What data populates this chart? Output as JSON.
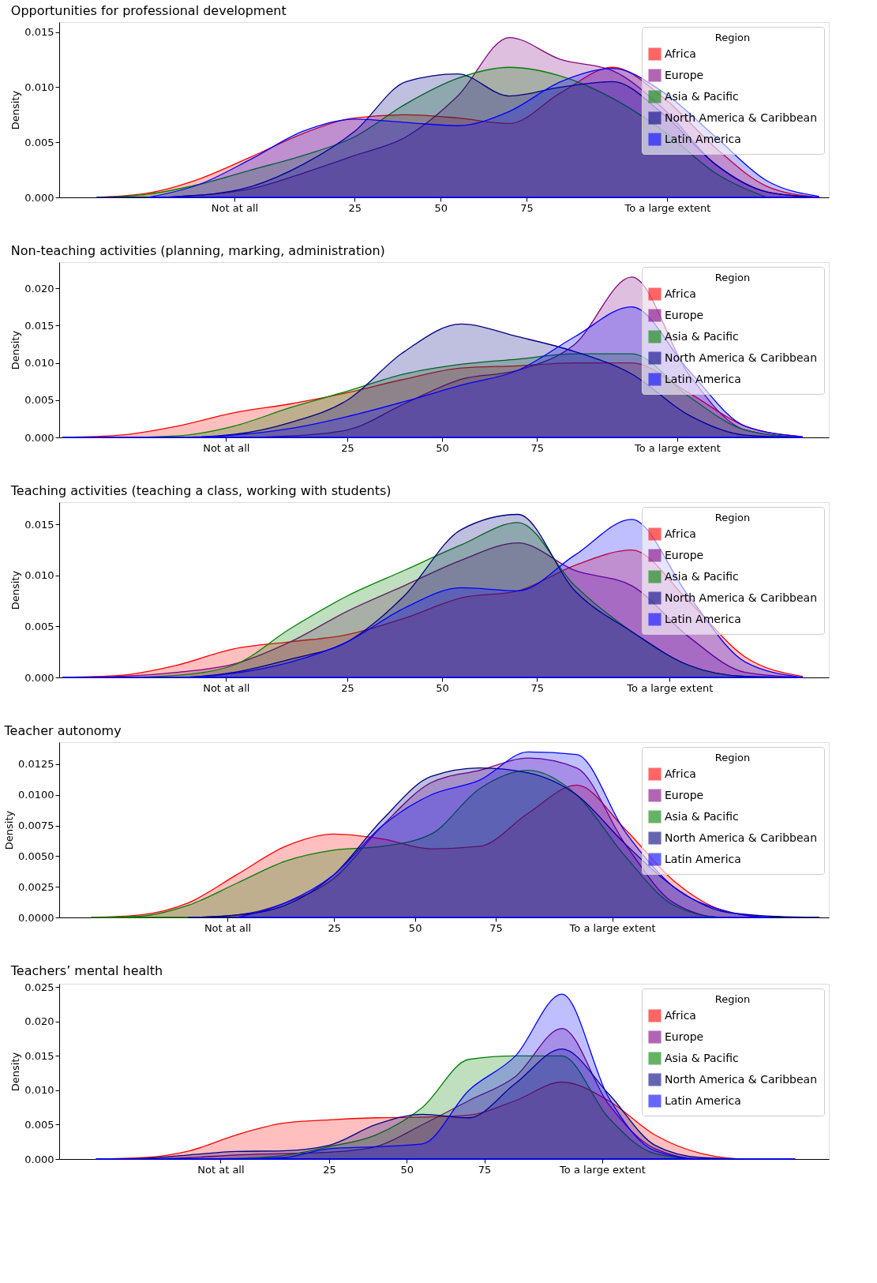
{
  "chart_data": [
    {
      "type": "area",
      "title": "Opportunities for professional development",
      "ylabel": "Density",
      "legend_title": "Region",
      "legend": "top right",
      "grid": false,
      "x": [
        -50,
        -35,
        -20,
        -5,
        10,
        25,
        40,
        55,
        70,
        85,
        100,
        115,
        130,
        145,
        160
      ],
      "xlim": [
        -61,
        163
      ],
      "xticks": [
        {
          "value": -10,
          "label": "Not at all"
        },
        25,
        50,
        75,
        {
          "value": 116,
          "label": "To a large extent"
        }
      ],
      "ylim": [
        0,
        0.0159
      ],
      "yticks": [
        {
          "value": 0,
          "label": "0.000"
        },
        0.005,
        {
          "value": 0.01,
          "label": "0.010"
        },
        0.015
      ],
      "series": [
        {
          "name": "Africa",
          "color": "#ff0000",
          "values": [
            0,
            0.0004,
            0.0017,
            0.0037,
            0.0058,
            0.0072,
            0.0075,
            0.0072,
            0.0067,
            0.0095,
            0.0118,
            0.009,
            0.0045,
            0.001,
            0
          ]
        },
        {
          "name": "Europe",
          "color": "#800080",
          "values": [
            0,
            0,
            0.0002,
            0.0008,
            0.0022,
            0.0038,
            0.0055,
            0.0092,
            0.0145,
            0.0125,
            0.0115,
            0.008,
            0.003,
            0.0005,
            0
          ]
        },
        {
          "name": "Asia & Pacific",
          "color": "#008000",
          "x": [
            -50,
            -35,
            -20,
            -5,
            10,
            25,
            40,
            55,
            70,
            85,
            100,
            115,
            130,
            145
          ],
          "values": [
            0,
            0.0003,
            0.0012,
            0.0025,
            0.0038,
            0.0055,
            0.0085,
            0.0108,
            0.0118,
            0.011,
            0.009,
            0.006,
            0.0022,
            0
          ]
        },
        {
          "name": "North America & Caribbean",
          "color": "#000080",
          "values": [
            0,
            0,
            0.0002,
            0.001,
            0.003,
            0.006,
            0.0105,
            0.0112,
            0.0092,
            0.01,
            0.0105,
            0.0075,
            0.003,
            0.0005,
            0
          ]
        },
        {
          "name": "Latin America",
          "color": "#0000ff",
          "x": [
            -35,
            -20,
            -5,
            10,
            25,
            40,
            55,
            70,
            85,
            100,
            115,
            130,
            145,
            160
          ],
          "values": [
            0,
            0.0012,
            0.0035,
            0.006,
            0.0071,
            0.0068,
            0.0065,
            0.0078,
            0.0105,
            0.0117,
            0.0095,
            0.0055,
            0.0015,
            0.0001
          ]
        }
      ]
    },
    {
      "type": "area",
      "title": "Non-teaching activities (planning, marking, administration)",
      "ylabel": "Density",
      "legend_title": "Region",
      "legend": "top right",
      "grid": false,
      "x": [
        -50,
        -35,
        -20,
        -5,
        10,
        25,
        40,
        55,
        70,
        85,
        100,
        115,
        130,
        145
      ],
      "xlim": [
        -51,
        152
      ],
      "xticks": [
        {
          "value": -7,
          "label": "Not at all"
        },
        25,
        50,
        75,
        {
          "value": 112,
          "label": "To a large extent"
        }
      ],
      "ylim": [
        0,
        0.0235
      ],
      "yticks": [
        {
          "value": 0,
          "label": "0.000"
        },
        0.005,
        {
          "value": 0.01,
          "label": "0.010"
        },
        0.015,
        {
          "value": 0.02,
          "label": "0.020"
        }
      ],
      "series": [
        {
          "name": "Africa",
          "color": "#ff0000",
          "values": [
            0,
            0.0003,
            0.0015,
            0.0033,
            0.0045,
            0.006,
            0.0078,
            0.0093,
            0.0096,
            0.01,
            0.01,
            0.006,
            0.0015,
            0.0001
          ]
        },
        {
          "name": "Europe",
          "color": "#800080",
          "values": [
            0,
            0,
            0,
            0,
            0.0002,
            0.001,
            0.0045,
            0.0078,
            0.009,
            0.0125,
            0.0215,
            0.0085,
            0.001,
            0
          ]
        },
        {
          "name": "Asia & Pacific",
          "color": "#008000",
          "values": [
            0,
            0,
            0.0002,
            0.0015,
            0.004,
            0.0062,
            0.0085,
            0.0098,
            0.0105,
            0.0112,
            0.0112,
            0.0055,
            0.001,
            0
          ]
        },
        {
          "name": "North America & Caribbean",
          "color": "#000080",
          "values": [
            0,
            0,
            0,
            0.0004,
            0.002,
            0.005,
            0.0115,
            0.0152,
            0.0135,
            0.0115,
            0.0085,
            0.003,
            0.0003,
            0
          ]
        },
        {
          "name": "Latin America",
          "color": "#0000ff",
          "values": [
            0,
            0,
            0,
            0.0003,
            0.0012,
            0.0028,
            0.0048,
            0.007,
            0.009,
            0.0135,
            0.0175,
            0.009,
            0.0015,
            0.0001
          ]
        }
      ]
    },
    {
      "type": "area",
      "title": "Teaching activities (teaching a class, working with students)",
      "ylabel": "Density",
      "legend_title": "Region",
      "legend": "top right",
      "grid": false,
      "x": [
        -50,
        -35,
        -20,
        -5,
        10,
        25,
        40,
        55,
        70,
        85,
        100,
        115,
        130,
        145
      ],
      "xlim": [
        -51,
        152
      ],
      "xticks": [
        {
          "value": -7,
          "label": "Not at all"
        },
        25,
        50,
        75,
        {
          "value": 110,
          "label": "To a large extent"
        }
      ],
      "ylim": [
        0,
        0.0172
      ],
      "yticks": [
        {
          "value": 0,
          "label": "0.000"
        },
        0.005,
        {
          "value": 0.01,
          "label": "0.010"
        },
        0.015
      ],
      "series": [
        {
          "name": "Africa",
          "color": "#ff0000",
          "values": [
            0,
            0.0002,
            0.0012,
            0.0028,
            0.0035,
            0.0042,
            0.0058,
            0.0078,
            0.0085,
            0.011,
            0.0125,
            0.0075,
            0.002,
            0.0001
          ]
        },
        {
          "name": "Europe",
          "color": "#800080",
          "values": [
            0,
            0.0001,
            0.0005,
            0.0013,
            0.0035,
            0.0065,
            0.009,
            0.0115,
            0.0132,
            0.0105,
            0.009,
            0.004,
            0.0005,
            0
          ]
        },
        {
          "name": "Asia & Pacific",
          "color": "#008000",
          "values": [
            0,
            0,
            0.0002,
            0.0012,
            0.0048,
            0.008,
            0.0105,
            0.013,
            0.0152,
            0.009,
            0.0045,
            0.0012,
            0.0001,
            0
          ]
        },
        {
          "name": "North America & Caribbean",
          "color": "#000080",
          "values": [
            0,
            0,
            0,
            0.0005,
            0.0018,
            0.0035,
            0.008,
            0.0145,
            0.016,
            0.0085,
            0.0045,
            0.0012,
            0.0001,
            0
          ]
        },
        {
          "name": "Latin America",
          "color": "#0000ff",
          "values": [
            0,
            0,
            0,
            0.0004,
            0.0015,
            0.0035,
            0.0068,
            0.0088,
            0.0085,
            0.012,
            0.0155,
            0.008,
            0.0015,
            0
          ]
        }
      ]
    },
    {
      "type": "area",
      "title": "Teacher autonomy",
      "ylabel": "Density",
      "legend_title": "Region",
      "legend": "top right",
      "grid": false,
      "x": [
        -50,
        -35,
        -20,
        -5,
        10,
        25,
        40,
        55,
        70,
        85,
        100,
        115,
        130,
        145,
        160,
        175
      ],
      "xlim": [
        -60,
        178
      ],
      "xticks": [
        {
          "value": -8,
          "label": "Not at all"
        },
        25,
        50,
        75,
        {
          "value": 111,
          "label": "To a large extent"
        }
      ],
      "ylim": [
        0,
        0.0143
      ],
      "yticks": [
        {
          "value": 0,
          "label": "0.0000"
        },
        {
          "value": 0.0025,
          "label": "0.0025"
        },
        {
          "value": 0.005,
          "label": "0.0050"
        },
        {
          "value": 0.0075,
          "label": "0.0075"
        },
        {
          "value": 0.01,
          "label": "0.0100"
        },
        {
          "value": 0.0125,
          "label": "0.0125"
        }
      ],
      "series": [
        {
          "name": "Africa",
          "color": "#ff0000",
          "values": [
            0,
            0.0002,
            0.0012,
            0.0035,
            0.0058,
            0.0068,
            0.0064,
            0.0056,
            0.0058,
            0.0085,
            0.0108,
            0.0072,
            0.003,
            0.0006,
            0,
            0
          ]
        },
        {
          "name": "Europe",
          "color": "#800080",
          "values": [
            0,
            0,
            0,
            0.0002,
            0.0012,
            0.0032,
            0.0075,
            0.011,
            0.012,
            0.013,
            0.0122,
            0.006,
            0.0012,
            0,
            0,
            0
          ]
        },
        {
          "name": "Asia & Pacific",
          "color": "#008000",
          "values": [
            0,
            0.0001,
            0.001,
            0.0028,
            0.0046,
            0.0055,
            0.0058,
            0.0068,
            0.0105,
            0.012,
            0.01,
            0.005,
            0.001,
            0,
            0,
            0
          ]
        },
        {
          "name": "North America & Caribbean",
          "color": "#000080",
          "x": [
            -20,
            -5,
            10,
            25,
            40,
            55,
            70,
            85,
            100,
            115,
            130,
            145,
            160,
            175
          ],
          "values": [
            0,
            0.0002,
            0.001,
            0.0035,
            0.008,
            0.0115,
            0.0122,
            0.0118,
            0.01,
            0.006,
            0.0025,
            0.0005,
            0.0001,
            0
          ]
        },
        {
          "name": "Latin America",
          "color": "#0000ff",
          "x": [
            -5,
            10,
            25,
            40,
            55,
            70,
            85,
            100,
            115,
            130,
            145,
            160
          ],
          "values": [
            0,
            0.0012,
            0.0035,
            0.0075,
            0.01,
            0.0112,
            0.0135,
            0.0133,
            0.007,
            0.0025,
            0.0006,
            0
          ]
        }
      ]
    },
    {
      "type": "area",
      "title": "Teachers’ mental health",
      "ylabel": "Density",
      "legend_title": "Region",
      "legend": "top right",
      "grid": false,
      "x": [
        -50,
        -35,
        -20,
        -5,
        10,
        25,
        40,
        55,
        70,
        85,
        100,
        115,
        130,
        145,
        160,
        175
      ],
      "xlim": [
        -62,
        186
      ],
      "xticks": [
        {
          "value": -10,
          "label": "Not at all"
        },
        25,
        50,
        75,
        {
          "value": 113,
          "label": "To a large extent"
        }
      ],
      "ylim": [
        0,
        0.0255
      ],
      "yticks": [
        {
          "value": 0,
          "label": "0.000"
        },
        0.005,
        {
          "value": 0.01,
          "label": "0.010"
        },
        0.015,
        {
          "value": 0.02,
          "label": "0.020"
        },
        0.025
      ],
      "series": [
        {
          "name": "Africa",
          "color": "#ff0000",
          "values": [
            0,
            0.0002,
            0.0012,
            0.0035,
            0.0052,
            0.0057,
            0.006,
            0.0061,
            0.0064,
            0.0085,
            0.0112,
            0.0085,
            0.0035,
            0.0008,
            0,
            0
          ]
        },
        {
          "name": "Europe",
          "color": "#800080",
          "values": [
            0,
            0,
            0.0002,
            0.0006,
            0.0008,
            0.001,
            0.0018,
            0.005,
            0.0085,
            0.012,
            0.019,
            0.008,
            0.0015,
            0,
            0,
            0
          ]
        },
        {
          "name": "Asia & Pacific",
          "color": "#008000",
          "values": [
            0,
            0,
            0,
            0.0001,
            0.0005,
            0.0018,
            0.0035,
            0.0075,
            0.0145,
            0.015,
            0.015,
            0.006,
            0.0008,
            0,
            0,
            0
          ]
        },
        {
          "name": "North America & Caribbean",
          "color": "#000080",
          "values": [
            0,
            0.0001,
            0.0006,
            0.0011,
            0.0012,
            0.002,
            0.005,
            0.0065,
            0.006,
            0.011,
            0.016,
            0.0095,
            0.002,
            0.0002,
            0,
            0
          ]
        },
        {
          "name": "Latin America",
          "color": "#0000ff",
          "values": [
            0,
            0,
            0,
            0,
            0.0002,
            0.0015,
            0.0018,
            0.0022,
            0.01,
            0.015,
            0.024,
            0.009,
            0.0012,
            0,
            0,
            0
          ]
        }
      ]
    }
  ]
}
